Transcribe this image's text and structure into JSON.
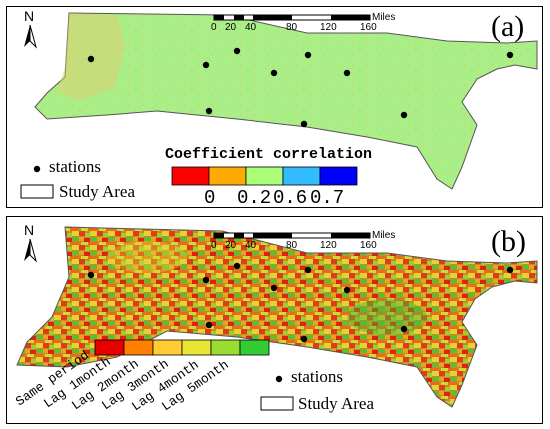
{
  "panel_a": {
    "label": "(a)",
    "north": "N",
    "scale": {
      "ticks": [
        "0",
        "20",
        "40",
        "80",
        "120",
        "160"
      ],
      "unit": "Miles"
    },
    "legend": {
      "stations": "stations",
      "study_area": "Study Area",
      "title": "Coefficient correlation",
      "colors": [
        "#ff0000",
        "#ffaa00",
        "#aaff77",
        "#33bbff",
        "#0000ff"
      ],
      "tick_labels": [
        "0",
        "0.2",
        "0.6",
        "0.7"
      ]
    }
  },
  "panel_b": {
    "label": "(b)",
    "north": "N",
    "scale": {
      "ticks": [
        "0",
        "20",
        "40",
        "80",
        "120",
        "160"
      ],
      "unit": "Miles"
    },
    "legend": {
      "colors": [
        "#e60000",
        "#ff7f00",
        "#ffcc33",
        "#e6e633",
        "#99dd33",
        "#33cc33"
      ],
      "categories": [
        "Same period",
        "Lag 1month",
        "Lag 2month",
        "Lag 3month",
        "Lag 4month",
        "Lag 5month"
      ],
      "stations": "stations",
      "study_area": "Study Area"
    }
  }
}
